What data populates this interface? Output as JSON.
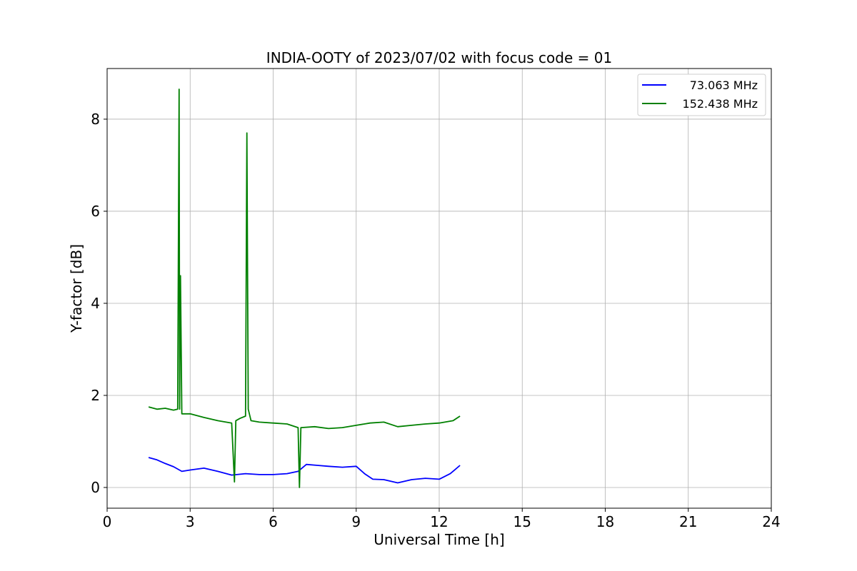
{
  "chart_data": {
    "type": "line",
    "title": "INDIA-OOTY of 2023/07/02 with focus code = 01",
    "xlabel": "Universal Time [h]",
    "ylabel": "Y-factor [dB]",
    "xlim": [
      0,
      24
    ],
    "ylim": [
      -0.45,
      9.1
    ],
    "xticks": [
      0,
      3,
      6,
      9,
      12,
      15,
      18,
      21,
      24
    ],
    "xtick_labels": [
      "0",
      "3",
      "6",
      "9",
      "12",
      "15",
      "18",
      "21",
      "24"
    ],
    "yticks": [
      0,
      2,
      4,
      6,
      8
    ],
    "ytick_labels": [
      "0",
      "2",
      "4",
      "6",
      "8"
    ],
    "grid": true,
    "legend_position": "top-right",
    "series": [
      {
        "name": "73.063 MHz",
        "color": "#0000ff",
        "x": [
          1.5,
          1.8,
          2.1,
          2.4,
          2.7,
          3.0,
          3.5,
          4.0,
          4.5,
          5.0,
          5.5,
          6.0,
          6.5,
          6.9,
          7.2,
          7.6,
          8.0,
          8.5,
          9.0,
          9.3,
          9.6,
          10.0,
          10.5,
          11.0,
          11.5,
          12.0,
          12.4,
          12.75
        ],
        "y": [
          0.65,
          0.6,
          0.52,
          0.45,
          0.35,
          0.38,
          0.42,
          0.35,
          0.27,
          0.3,
          0.28,
          0.28,
          0.3,
          0.35,
          0.5,
          0.48,
          0.46,
          0.44,
          0.46,
          0.3,
          0.18,
          0.17,
          0.1,
          0.17,
          0.2,
          0.18,
          0.3,
          0.48
        ]
      },
      {
        "name": "152.438 MHz",
        "color": "#008000",
        "x": [
          1.5,
          1.8,
          2.1,
          2.4,
          2.55,
          2.6,
          2.62,
          2.65,
          2.7,
          3.0,
          3.5,
          4.0,
          4.5,
          4.6,
          4.65,
          4.8,
          5.0,
          5.05,
          5.1,
          5.2,
          5.5,
          6.0,
          6.5,
          6.9,
          6.95,
          7.0,
          7.5,
          8.0,
          8.5,
          9.0,
          9.5,
          10.0,
          10.5,
          11.0,
          11.5,
          12.0,
          12.5,
          12.75
        ],
        "y": [
          1.75,
          1.7,
          1.72,
          1.68,
          1.7,
          8.65,
          1.7,
          4.6,
          1.6,
          1.6,
          1.52,
          1.45,
          1.4,
          0.12,
          1.45,
          1.5,
          1.55,
          7.7,
          1.7,
          1.45,
          1.42,
          1.4,
          1.38,
          1.3,
          0.0,
          1.3,
          1.32,
          1.28,
          1.3,
          1.35,
          1.4,
          1.42,
          1.32,
          1.35,
          1.38,
          1.4,
          1.45,
          1.55
        ]
      }
    ]
  }
}
